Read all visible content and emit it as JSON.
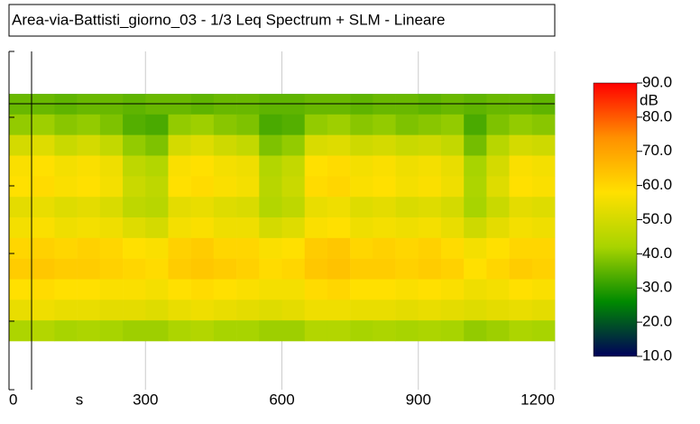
{
  "chart_data": {
    "type": "heatmap",
    "title": "Area-via-Battisti_giorno_03 - 1/3 Leq Spectrum + SLM - Lineare",
    "x": [
      0,
      50,
      100,
      150,
      200,
      250,
      300,
      350,
      400,
      450,
      500,
      550,
      600,
      650,
      700,
      750,
      800,
      850,
      900,
      950,
      1000,
      1050,
      1100,
      1150,
      1200
    ],
    "xlim": [
      0,
      1200
    ],
    "xticks": [
      0,
      300,
      600,
      900,
      1200
    ],
    "xlabel": "s",
    "z": [
      [
        36,
        36,
        35,
        36,
        36,
        35,
        36,
        36,
        35,
        36,
        36,
        35,
        35,
        36,
        36,
        35,
        36,
        36,
        35,
        36,
        35,
        36,
        36,
        35
      ],
      [
        40,
        41,
        39,
        40,
        38,
        34,
        33,
        40,
        41,
        39,
        38,
        33,
        34,
        40,
        41,
        39,
        40,
        38,
        39,
        40,
        33,
        38,
        40,
        39
      ],
      [
        50,
        52,
        48,
        50,
        47,
        40,
        38,
        50,
        52,
        49,
        47,
        38,
        40,
        51,
        52,
        49,
        50,
        48,
        49,
        47,
        37,
        45,
        50,
        49
      ],
      [
        57,
        58,
        56,
        57,
        55,
        46,
        44,
        57,
        58,
        56,
        55,
        44,
        47,
        58,
        59,
        56,
        57,
        55,
        56,
        54,
        42,
        50,
        57,
        56
      ],
      [
        58,
        59,
        57,
        58,
        56,
        48,
        46,
        58,
        59,
        57,
        56,
        45,
        48,
        59,
        60,
        57,
        58,
        56,
        57,
        55,
        43,
        52,
        58,
        57
      ],
      [
        53,
        54,
        52,
        53,
        51,
        46,
        45,
        53,
        54,
        52,
        51,
        44,
        46,
        54,
        55,
        52,
        53,
        51,
        52,
        50,
        42,
        48,
        53,
        52
      ],
      [
        56,
        57,
        55,
        56,
        55,
        52,
        50,
        56,
        57,
        55,
        55,
        50,
        52,
        57,
        58,
        55,
        56,
        55,
        56,
        54,
        49,
        53,
        56,
        55
      ],
      [
        60,
        61,
        60,
        61,
        60,
        58,
        57,
        61,
        62,
        60,
        60,
        57,
        58,
        62,
        63,
        60,
        61,
        60,
        61,
        59,
        56,
        58,
        60,
        60
      ],
      [
        62,
        63,
        62,
        62,
        61,
        60,
        59,
        62,
        63,
        62,
        61,
        59,
        60,
        63,
        64,
        62,
        62,
        61,
        62,
        61,
        58,
        60,
        62,
        61
      ],
      [
        58,
        59,
        58,
        58,
        57,
        57,
        56,
        58,
        59,
        58,
        57,
        56,
        56,
        59,
        60,
        58,
        58,
        57,
        58,
        57,
        55,
        56,
        58,
        57
      ],
      [
        54,
        55,
        54,
        54,
        53,
        53,
        52,
        54,
        55,
        54,
        53,
        52,
        53,
        55,
        55,
        54,
        54,
        53,
        54,
        53,
        52,
        53,
        54,
        53
      ],
      [
        43,
        44,
        42,
        43,
        42,
        41,
        41,
        43,
        44,
        42,
        42,
        41,
        41,
        44,
        44,
        42,
        43,
        42,
        43,
        42,
        40,
        41,
        43,
        42
      ]
    ],
    "zlim": [
      10,
      90
    ],
    "zticks": [
      {
        "value": 90,
        "label": "90.0"
      },
      {
        "value": 80,
        "label": "80.0"
      },
      {
        "value": 70,
        "label": "70.0"
      },
      {
        "value": 60,
        "label": "60.0"
      },
      {
        "value": 50,
        "label": "50.0"
      },
      {
        "value": 40,
        "label": "40.0"
      },
      {
        "value": 30,
        "label": "30.0"
      },
      {
        "value": 20,
        "label": "20.0"
      },
      {
        "value": 10,
        "label": "10.0"
      }
    ],
    "zlabel": "dB",
    "colorscale": [
      "#00005a",
      "#008a00",
      "#a8d400",
      "#ffe000",
      "#ff9000",
      "#ff0000"
    ],
    "grid": true
  }
}
